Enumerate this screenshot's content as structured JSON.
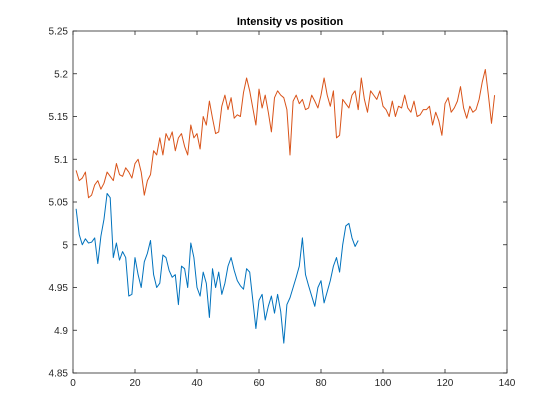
{
  "chart_data": {
    "type": "line",
    "title": "Intensity vs position",
    "xlabel": "",
    "ylabel": "",
    "xlim": [
      0,
      140
    ],
    "ylim": [
      4.85,
      5.25
    ],
    "xticks": [
      0,
      20,
      40,
      60,
      80,
      100,
      120,
      140
    ],
    "yticks": [
      4.85,
      4.9,
      4.95,
      5,
      5.05,
      5.1,
      5.15,
      5.2,
      5.25
    ],
    "xtick_labels": [
      "0",
      "20",
      "40",
      "60",
      "80",
      "100",
      "120",
      "140"
    ],
    "ytick_labels": [
      "4.85",
      "4.9",
      "4.95",
      "5",
      "5.05",
      "5.1",
      "5.15",
      "5.2",
      "5.25"
    ],
    "grid": false,
    "legend": "none",
    "series": [
      {
        "color": "#0072BD",
        "x_start": 1,
        "x_step": 1,
        "values": [
          5.042,
          5.012,
          5.0,
          5.007,
          5.002,
          5.003,
          5.008,
          4.978,
          5.01,
          5.03,
          5.06,
          5.055,
          4.985,
          5.002,
          4.982,
          4.992,
          4.985,
          4.94,
          4.942,
          4.985,
          4.965,
          4.95,
          4.98,
          4.99,
          5.005,
          4.965,
          4.95,
          4.955,
          4.988,
          4.985,
          4.97,
          4.962,
          4.965,
          4.93,
          4.975,
          4.972,
          4.95,
          5.002,
          4.985,
          4.95,
          4.94,
          4.968,
          4.955,
          4.915,
          4.972,
          4.95,
          4.968,
          4.942,
          4.955,
          4.975,
          4.985,
          4.97,
          4.958,
          4.952,
          4.948,
          4.972,
          4.968,
          4.935,
          4.902,
          4.935,
          4.942,
          4.912,
          4.928,
          4.94,
          4.92,
          4.942,
          4.922,
          4.885,
          4.93,
          4.938,
          4.95,
          4.962,
          4.975,
          5.008,
          4.965,
          4.952,
          4.94,
          4.928,
          4.95,
          4.958,
          4.932,
          4.945,
          4.958,
          4.975,
          4.985,
          4.968,
          5.0,
          5.022,
          5.025,
          5.008,
          4.998,
          5.005
        ]
      },
      {
        "color": "#D95319",
        "x_start": 1,
        "x_step": 1,
        "values": [
          5.087,
          5.075,
          5.078,
          5.085,
          5.055,
          5.058,
          5.07,
          5.075,
          5.065,
          5.072,
          5.085,
          5.08,
          5.075,
          5.095,
          5.082,
          5.08,
          5.09,
          5.085,
          5.078,
          5.095,
          5.1,
          5.085,
          5.058,
          5.075,
          5.082,
          5.11,
          5.105,
          5.125,
          5.105,
          5.13,
          5.122,
          5.132,
          5.11,
          5.125,
          5.13,
          5.115,
          5.105,
          5.14,
          5.125,
          5.13,
          5.112,
          5.15,
          5.14,
          5.168,
          5.148,
          5.13,
          5.132,
          5.162,
          5.175,
          5.158,
          5.172,
          5.148,
          5.152,
          5.15,
          5.178,
          5.195,
          5.18,
          5.16,
          5.14,
          5.182,
          5.16,
          5.175,
          5.155,
          5.132,
          5.172,
          5.18,
          5.175,
          5.172,
          5.158,
          5.105,
          5.168,
          5.175,
          5.165,
          5.17,
          5.158,
          5.16,
          5.175,
          5.168,
          5.16,
          5.175,
          5.195,
          5.175,
          5.162,
          5.18,
          5.125,
          5.128,
          5.17,
          5.165,
          5.16,
          5.175,
          5.18,
          5.158,
          5.195,
          5.17,
          5.155,
          5.18,
          5.175,
          5.17,
          5.18,
          5.162,
          5.158,
          5.15,
          5.168,
          5.15,
          5.162,
          5.16,
          5.175,
          5.16,
          5.155,
          5.168,
          5.15,
          5.152,
          5.158,
          5.158,
          5.162,
          5.14,
          5.155,
          5.145,
          5.128,
          5.165,
          5.172,
          5.155,
          5.16,
          5.168,
          5.185,
          5.16,
          5.148,
          5.162,
          5.155,
          5.158,
          5.17,
          5.19,
          5.205,
          5.175,
          5.142,
          5.175
        ]
      }
    ]
  }
}
